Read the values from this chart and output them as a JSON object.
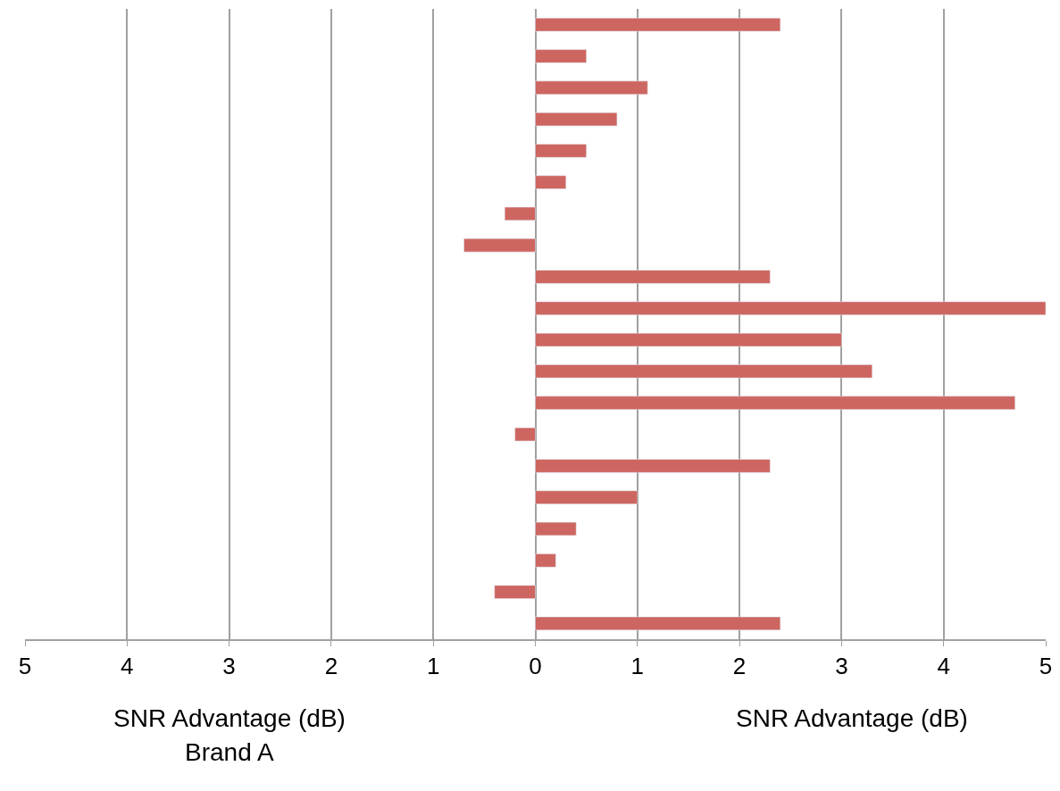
{
  "chart_data": {
    "type": "bar",
    "orientation": "horizontal",
    "categories": [
      null,
      null,
      null,
      null,
      null,
      null,
      null,
      null,
      null,
      null,
      null,
      null,
      null,
      null,
      null,
      null,
      null,
      null,
      null,
      null
    ],
    "values": [
      2.4,
      0.5,
      1.1,
      0.8,
      0.5,
      0.3,
      -0.3,
      -0.7,
      2.3,
      5,
      3.0,
      3.3,
      4.7,
      -0.2,
      2.3,
      1.0,
      0.4,
      0.2,
      -0.4,
      2.4
    ],
    "color": "#cd6661",
    "xlim": [
      -5,
      5
    ],
    "xticks": [
      {
        "value": -5,
        "label": "5"
      },
      {
        "value": -4,
        "label": "4"
      },
      {
        "value": -3,
        "label": "3"
      },
      {
        "value": -2,
        "label": "2"
      },
      {
        "value": -1,
        "label": "1"
      },
      0,
      1,
      2,
      3,
      4,
      5
    ],
    "grid": "x",
    "tick_labels": "x",
    "annotations": [
      "SNR Advantage (dB)",
      "Brand A",
      "SNR Advantage (dB)"
    ]
  }
}
